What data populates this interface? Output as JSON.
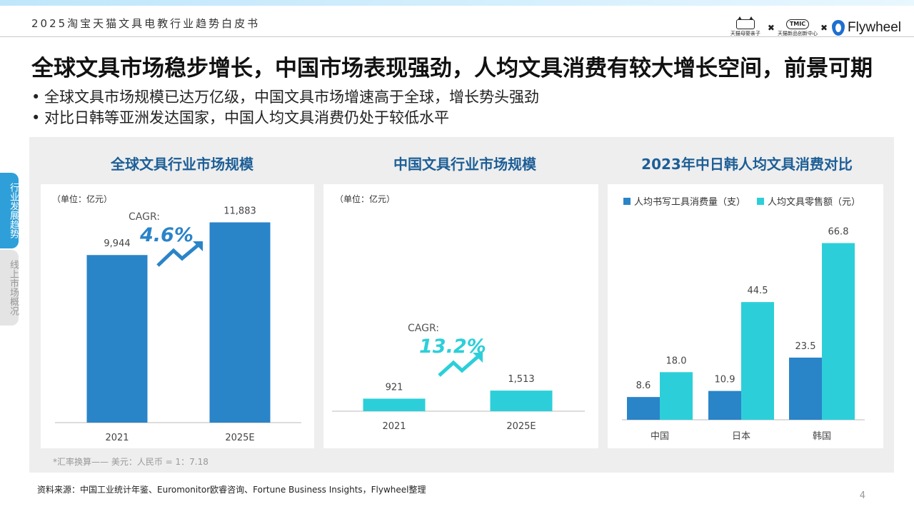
{
  "header": {
    "report_title": "2025淘宝天猫文具电教行业趋势白皮书",
    "logos": {
      "tmall": "天猫母婴亲子",
      "tmic_mark": "TMIC",
      "tmic": "天猫新品创新中心",
      "separator": "✖",
      "flywheel": "Flywheel"
    }
  },
  "headline": "全球文具市场稳步增长，中国市场表现强劲，人均文具消费有较大增长空间，前景可期",
  "bullets": [
    "全球文具市场规模已达万亿级，中国文具市场增速高于全球，增长势头强劲",
    "对比日韩等亚洲发达国家，中国人均文具消费仍处于较低水平"
  ],
  "bullet_marker": "•",
  "sidebar": {
    "tabs": [
      {
        "label": "行业发展趋势",
        "active": true
      },
      {
        "label": "线上市场概况",
        "active": false
      }
    ]
  },
  "chart_data": [
    {
      "type": "bar",
      "title": "全球文具行业市场规模",
      "unit": "（单位：亿元）",
      "categories": [
        "2021",
        "2025E"
      ],
      "values": [
        9944,
        11883
      ],
      "value_labels": [
        "9,944",
        "11,883"
      ],
      "ylim": [
        0,
        13000
      ],
      "cagr_label": "CAGR:",
      "cagr_value": "4.6%",
      "color": "#2a84c8",
      "accent": "#2a84c8"
    },
    {
      "type": "bar",
      "title": "中国文具行业市场规模",
      "unit": "（单位：亿元）",
      "categories": [
        "2021",
        "2025E"
      ],
      "values": [
        921,
        1513
      ],
      "value_labels": [
        "921",
        "1,513"
      ],
      "ylim": [
        0,
        11000
      ],
      "cagr_label": "CAGR:",
      "cagr_value": "13.2%",
      "color": "#2ccfd9",
      "accent": "#2ccfd9"
    },
    {
      "type": "bar",
      "title": "2023年中日韩人均文具消费对比",
      "categories": [
        "中国",
        "日本",
        "韩国"
      ],
      "series": [
        {
          "name": "人均书写工具消费量（支）",
          "values": [
            8.6,
            10.9,
            23.5
          ],
          "color": "#2a84c8"
        },
        {
          "name": "人均文具零售额（元）",
          "values": [
            18.0,
            44.5,
            66.8
          ],
          "color": "#2ccfd9"
        }
      ],
      "value_labels": [
        [
          "8.6",
          "10.9",
          "23.5"
        ],
        [
          "18.0",
          "44.5",
          "66.8"
        ]
      ],
      "ylim": [
        0,
        75
      ],
      "legend": "top"
    }
  ],
  "footnote": "*汇率换算—— 美元：人民币 = 1：7.18",
  "source": "资料来源：中国工业统计年鉴、Euromonitor欧睿咨询、Fortune Business Insights，Flywheel整理",
  "page_number": "4"
}
